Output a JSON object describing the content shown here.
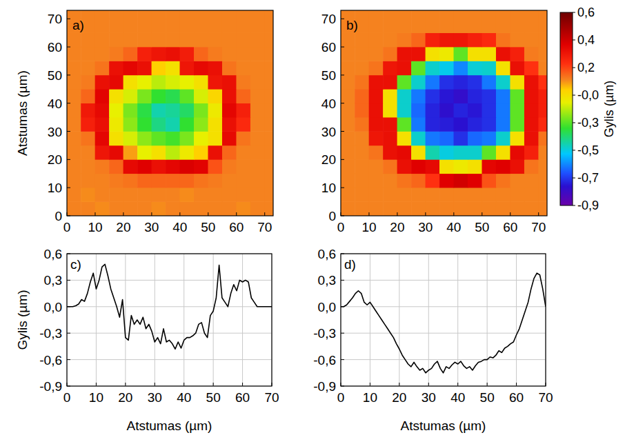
{
  "chart_data": [
    {
      "type": "heatmap",
      "title": "a)",
      "y_label": "Atstumas (µm)",
      "x": [
        2.5,
        7.5,
        12.5,
        17.5,
        22.5,
        27.5,
        32.5,
        37.5,
        42.5,
        47.5,
        52.5,
        57.5,
        62.5,
        67.5,
        72.5
      ],
      "y": [
        2.5,
        7.5,
        12.5,
        17.5,
        22.5,
        27.5,
        32.5,
        37.5,
        42.5,
        47.5,
        52.5,
        57.5,
        62.5,
        67.5,
        72.5
      ],
      "cells": [
        [
          0.08,
          0.08,
          0.07,
          0.08,
          0.08,
          0.08,
          0.07,
          0.08,
          0.08,
          0.08,
          0.08,
          0.08,
          0.07,
          0.08,
          0.08
        ],
        [
          0.08,
          0.07,
          0.08,
          0.08,
          0.08,
          0.08,
          0.08,
          0.08,
          0.07,
          0.08,
          0.08,
          0.08,
          0.08,
          0.08,
          0.08
        ],
        [
          0.08,
          0.08,
          0.08,
          0.09,
          0.1,
          0.12,
          0.12,
          0.12,
          0.12,
          0.1,
          0.09,
          0.08,
          0.08,
          0.08,
          0.08
        ],
        [
          0.08,
          0.08,
          0.09,
          0.12,
          0.32,
          0.35,
          0.3,
          0.33,
          0.36,
          0.34,
          0.15,
          0.09,
          0.08,
          0.08,
          0.08
        ],
        [
          0.08,
          0.08,
          0.28,
          0.32,
          0.05,
          -0.1,
          -0.05,
          -0.15,
          -0.08,
          0.0,
          0.3,
          0.12,
          0.08,
          0.08,
          0.08
        ],
        [
          0.08,
          0.1,
          0.33,
          -0.05,
          -0.12,
          -0.2,
          -0.25,
          -0.28,
          -0.22,
          -0.1,
          -0.05,
          0.32,
          0.1,
          0.08,
          0.08
        ],
        [
          0.08,
          0.25,
          0.3,
          -0.08,
          -0.2,
          -0.3,
          -0.38,
          -0.42,
          -0.3,
          -0.2,
          -0.05,
          0.3,
          0.22,
          0.08,
          0.08
        ],
        [
          0.08,
          0.27,
          0.32,
          -0.1,
          -0.22,
          -0.32,
          -0.42,
          -0.4,
          -0.35,
          -0.22,
          -0.08,
          0.33,
          0.25,
          0.08,
          0.08
        ],
        [
          0.08,
          0.12,
          0.34,
          -0.05,
          -0.12,
          -0.22,
          -0.3,
          -0.33,
          -0.25,
          -0.12,
          -0.02,
          0.3,
          0.12,
          0.08,
          0.08
        ],
        [
          0.08,
          0.09,
          0.3,
          0.32,
          -0.05,
          -0.1,
          -0.15,
          -0.12,
          -0.1,
          -0.05,
          0.28,
          0.3,
          0.09,
          0.08,
          0.08
        ],
        [
          0.08,
          0.08,
          0.1,
          0.3,
          0.33,
          0.3,
          0.0,
          -0.05,
          0.28,
          0.32,
          0.3,
          0.1,
          0.08,
          0.08,
          0.08
        ],
        [
          0.08,
          0.08,
          0.08,
          0.09,
          0.12,
          0.25,
          0.28,
          0.3,
          0.26,
          0.12,
          0.09,
          0.08,
          0.08,
          0.08,
          0.08
        ],
        [
          0.08,
          0.08,
          0.08,
          0.08,
          0.08,
          0.08,
          0.08,
          0.08,
          0.08,
          0.08,
          0.08,
          0.08,
          0.08,
          0.08,
          0.08
        ],
        [
          0.08,
          0.08,
          0.08,
          0.08,
          0.08,
          0.08,
          0.08,
          0.08,
          0.08,
          0.08,
          0.08,
          0.08,
          0.08,
          0.08,
          0.08
        ],
        [
          0.08,
          0.08,
          0.08,
          0.08,
          0.08,
          0.08,
          0.08,
          0.08,
          0.08,
          0.08,
          0.08,
          0.08,
          0.08,
          0.08,
          0.08
        ]
      ],
      "xlim": [
        0,
        73
      ],
      "ylim": [
        0,
        73
      ],
      "xticks": [
        0,
        10,
        20,
        30,
        40,
        50,
        60,
        70
      ],
      "yticks": [
        0,
        10,
        20,
        30,
        40,
        50,
        60,
        70
      ]
    },
    {
      "type": "heatmap",
      "title": "b)",
      "x": [
        2.5,
        7.5,
        12.5,
        17.5,
        22.5,
        27.5,
        32.5,
        37.5,
        42.5,
        47.5,
        52.5,
        57.5,
        62.5,
        67.5,
        72.5
      ],
      "y": [
        2.5,
        7.5,
        12.5,
        17.5,
        22.5,
        27.5,
        32.5,
        37.5,
        42.5,
        47.5,
        52.5,
        57.5,
        62.5,
        67.5,
        72.5
      ],
      "cells": [
        [
          0.08,
          0.08,
          0.08,
          0.08,
          0.08,
          0.08,
          0.08,
          0.08,
          0.08,
          0.08,
          0.08,
          0.08,
          0.08,
          0.08,
          0.08
        ],
        [
          0.08,
          0.08,
          0.08,
          0.08,
          0.08,
          0.08,
          0.08,
          0.08,
          0.08,
          0.08,
          0.08,
          0.08,
          0.08,
          0.08,
          0.08
        ],
        [
          0.08,
          0.08,
          0.08,
          0.08,
          0.1,
          0.12,
          0.2,
          0.35,
          0.38,
          0.35,
          0.15,
          0.1,
          0.08,
          0.08,
          0.08
        ],
        [
          0.08,
          0.08,
          0.08,
          0.1,
          0.3,
          0.35,
          0.32,
          -0.05,
          -0.08,
          -0.05,
          0.33,
          0.35,
          0.3,
          0.1,
          0.08
        ],
        [
          0.08,
          0.08,
          0.1,
          0.3,
          0.32,
          -0.05,
          -0.42,
          -0.47,
          -0.45,
          -0.45,
          -0.25,
          -0.05,
          0.32,
          0.25,
          0.08
        ],
        [
          0.08,
          0.08,
          0.28,
          0.3,
          -0.05,
          -0.45,
          -0.6,
          -0.62,
          -0.7,
          -0.62,
          -0.6,
          -0.45,
          -0.05,
          0.3,
          0.1
        ],
        [
          0.08,
          0.1,
          0.3,
          0.3,
          -0.25,
          -0.6,
          -0.72,
          -0.73,
          -0.75,
          -0.72,
          -0.7,
          -0.6,
          -0.25,
          0.3,
          0.22
        ],
        [
          0.08,
          0.12,
          0.3,
          -0.05,
          -0.45,
          -0.62,
          -0.72,
          -0.76,
          -0.72,
          -0.74,
          -0.7,
          -0.6,
          -0.25,
          0.3,
          0.25
        ],
        [
          0.08,
          0.12,
          0.3,
          -0.05,
          -0.45,
          -0.6,
          -0.7,
          -0.74,
          -0.77,
          -0.72,
          -0.7,
          -0.6,
          -0.25,
          0.3,
          0.25
        ],
        [
          0.08,
          0.1,
          0.3,
          0.3,
          -0.25,
          -0.45,
          -0.6,
          -0.7,
          -0.72,
          -0.7,
          -0.6,
          -0.45,
          -0.05,
          0.3,
          0.2
        ],
        [
          0.08,
          0.08,
          0.1,
          0.28,
          0.3,
          -0.25,
          -0.45,
          -0.48,
          -0.58,
          -0.46,
          -0.45,
          -0.05,
          0.3,
          0.2,
          0.08
        ],
        [
          0.08,
          0.08,
          0.08,
          0.1,
          0.3,
          0.3,
          -0.05,
          -0.08,
          -0.25,
          -0.05,
          -0.05,
          0.3,
          0.25,
          0.09,
          0.08
        ],
        [
          0.08,
          0.08,
          0.08,
          0.08,
          0.09,
          0.12,
          0.25,
          0.28,
          0.28,
          0.25,
          0.22,
          0.1,
          0.08,
          0.08,
          0.08
        ],
        [
          0.08,
          0.08,
          0.08,
          0.08,
          0.08,
          0.08,
          0.08,
          0.08,
          0.08,
          0.08,
          0.08,
          0.08,
          0.08,
          0.08,
          0.08
        ],
        [
          0.08,
          0.08,
          0.08,
          0.08,
          0.08,
          0.08,
          0.08,
          0.08,
          0.08,
          0.08,
          0.08,
          0.08,
          0.08,
          0.08,
          0.08
        ]
      ],
      "xlim": [
        0,
        73
      ],
      "ylim": [
        0,
        73
      ],
      "xticks": [
        0,
        10,
        20,
        30,
        40,
        50,
        60,
        70
      ],
      "yticks": [
        0,
        10,
        20,
        30,
        40,
        50,
        60,
        70
      ],
      "colorbar": {
        "label": "Gylis (µm)",
        "range": [
          -0.9,
          0.6
        ],
        "ticks": [
          {
            "value": 0.6,
            "label": "0,6"
          },
          {
            "value": 0.386,
            "label": "0,4"
          },
          {
            "value": 0.171,
            "label": "0,2"
          },
          {
            "value": -0.043,
            "label": "-0,0"
          },
          {
            "value": -0.257,
            "label": "-0,3"
          },
          {
            "value": -0.471,
            "label": "-0,5"
          },
          {
            "value": -0.686,
            "label": "-0,7"
          },
          {
            "value": -0.9,
            "label": "-0,9"
          }
        ]
      }
    },
    {
      "type": "line",
      "title": "c)",
      "x_label": "Atstumas (µm)",
      "y_label": "Gylis (µm)",
      "color": "#000000",
      "grid": true,
      "x": [
        0,
        1,
        2,
        3,
        4,
        5,
        6,
        7,
        8,
        9,
        10,
        11,
        12,
        13,
        14,
        15,
        16,
        17,
        18,
        19,
        20,
        21,
        22,
        23,
        24,
        25,
        26,
        27,
        28,
        29,
        30,
        31,
        32,
        33,
        34,
        35,
        36,
        37,
        38,
        39,
        40,
        41,
        42,
        43,
        44,
        45,
        46,
        47,
        48,
        49,
        50,
        51,
        52,
        53,
        54,
        55,
        56,
        57,
        58,
        59,
        60,
        61,
        62,
        63,
        64,
        65,
        66,
        67,
        68,
        69,
        70
      ],
      "values": [
        0,
        0,
        0,
        0.01,
        0.03,
        0.08,
        0.06,
        0.15,
        0.28,
        0.38,
        0.2,
        0.3,
        0.45,
        0.48,
        0.35,
        0.2,
        0.1,
        0.0,
        -0.12,
        0.08,
        -0.35,
        -0.38,
        -0.1,
        -0.2,
        -0.15,
        -0.2,
        -0.12,
        -0.25,
        -0.2,
        -0.28,
        -0.4,
        -0.35,
        -0.42,
        -0.25,
        -0.4,
        -0.38,
        -0.42,
        -0.48,
        -0.4,
        -0.47,
        -0.38,
        -0.35,
        -0.35,
        -0.33,
        -0.3,
        -0.2,
        -0.18,
        -0.3,
        -0.35,
        -0.1,
        -0.05,
        0.1,
        0.47,
        0.1,
        0.05,
        0.0,
        0.15,
        0.25,
        0.18,
        0.3,
        0.28,
        0.3,
        0.28,
        0.1,
        0.05,
        0.0,
        0.0,
        0.0,
        0.0,
        0.0,
        0.0
      ],
      "xlim": [
        0,
        70
      ],
      "ylim": [
        -0.9,
        0.6
      ],
      "xticks": [
        0,
        10,
        20,
        30,
        40,
        50,
        60,
        70
      ],
      "yticks": [
        {
          "value": -0.9,
          "label": "-0,9"
        },
        {
          "value": -0.6,
          "label": "-0,6"
        },
        {
          "value": -0.3,
          "label": "-0,3"
        },
        {
          "value": 0,
          "label": "0,0"
        },
        {
          "value": 0.3,
          "label": "0,3"
        },
        {
          "value": 0.6,
          "label": "0,6"
        }
      ]
    },
    {
      "type": "line",
      "title": "d)",
      "x_label": "Atstumas (µm)",
      "color": "#000000",
      "grid": true,
      "x": [
        0,
        1,
        2,
        3,
        4,
        5,
        6,
        7,
        8,
        9,
        10,
        11,
        12,
        13,
        14,
        15,
        16,
        17,
        18,
        19,
        20,
        21,
        22,
        23,
        24,
        25,
        26,
        27,
        28,
        29,
        30,
        31,
        32,
        33,
        34,
        35,
        36,
        37,
        38,
        39,
        40,
        41,
        42,
        43,
        44,
        45,
        46,
        47,
        48,
        49,
        50,
        51,
        52,
        53,
        54,
        55,
        56,
        57,
        58,
        59,
        60,
        61,
        62,
        63,
        64,
        65,
        66,
        67,
        68,
        69,
        70
      ],
      "values": [
        0,
        0,
        0.02,
        0.06,
        0.1,
        0.15,
        0.18,
        0.15,
        0.05,
        0.02,
        0.05,
        0.0,
        -0.05,
        -0.1,
        -0.15,
        -0.2,
        -0.25,
        -0.3,
        -0.35,
        -0.42,
        -0.48,
        -0.55,
        -0.6,
        -0.65,
        -0.68,
        -0.63,
        -0.68,
        -0.72,
        -0.7,
        -0.75,
        -0.72,
        -0.7,
        -0.65,
        -0.62,
        -0.7,
        -0.75,
        -0.68,
        -0.7,
        -0.66,
        -0.63,
        -0.65,
        -0.62,
        -0.67,
        -0.7,
        -0.68,
        -0.72,
        -0.67,
        -0.63,
        -0.62,
        -0.6,
        -0.6,
        -0.57,
        -0.58,
        -0.55,
        -0.5,
        -0.52,
        -0.47,
        -0.45,
        -0.42,
        -0.4,
        -0.32,
        -0.25,
        -0.15,
        -0.05,
        0.05,
        0.2,
        0.32,
        0.38,
        0.36,
        0.2,
        0.0
      ],
      "xlim": [
        0,
        70
      ],
      "ylim": [
        -0.9,
        0.6
      ],
      "xticks": [
        0,
        10,
        20,
        30,
        40,
        50,
        60,
        70
      ],
      "yticks": [
        {
          "value": -0.9,
          "label": "-0,9"
        },
        {
          "value": -0.6,
          "label": "-0,6"
        },
        {
          "value": -0.3,
          "label": "-0,3"
        },
        {
          "value": 0,
          "label": "0,0"
        },
        {
          "value": 0.3,
          "label": "0,3"
        },
        {
          "value": 0.6,
          "label": "0,6"
        }
      ]
    }
  ]
}
